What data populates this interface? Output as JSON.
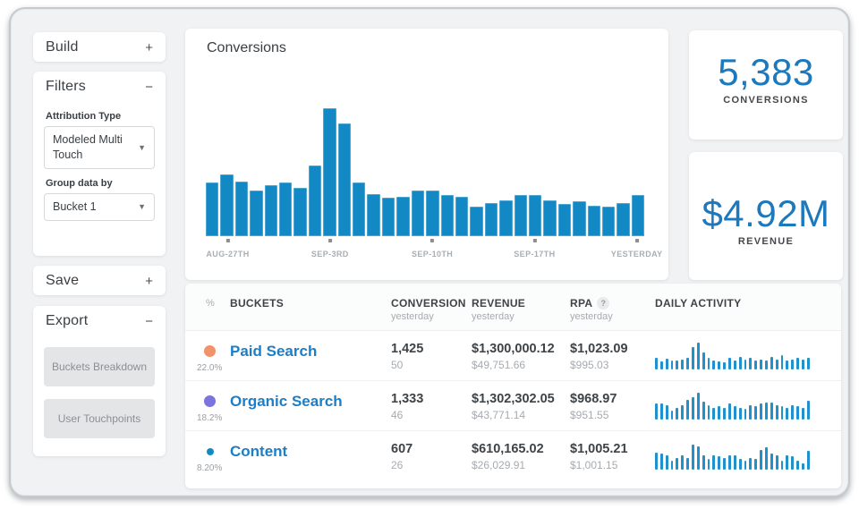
{
  "colors": {
    "accent_blue": "#1289c5",
    "stat_blue": "#1d79bb",
    "link_blue": "#1b7ec6",
    "window_bg": "#f1f2f4"
  },
  "sidebar": {
    "build": {
      "label": "Build",
      "toggle": "+"
    },
    "filters": {
      "label": "Filters",
      "toggle": "−",
      "attribution_label": "Attribution Type",
      "attribution_value": "Modeled Multi Touch",
      "group_label": "Group data by",
      "group_value": "Bucket 1"
    },
    "save": {
      "label": "Save",
      "toggle": "+"
    },
    "export": {
      "label": "Export",
      "toggle": "−",
      "buttons": [
        {
          "label": "Buckets Breakdown"
        },
        {
          "label": "User Touchpoints"
        }
      ]
    }
  },
  "chart": {
    "title": "Conversions",
    "x_labels": [
      "AUG-27TH",
      "SEP-3RD",
      "SEP-10TH",
      "SEP-17TH",
      "YESTERDAY"
    ],
    "values_relative_pct": [
      42,
      48,
      43,
      36,
      40,
      42,
      38,
      55,
      100,
      88,
      42,
      33,
      30,
      31,
      36,
      36,
      32,
      31,
      23,
      26,
      28,
      32,
      32,
      28,
      25,
      27,
      24,
      23,
      26,
      32
    ]
  },
  "chart_data": {
    "type": "bar",
    "title": "Conversions",
    "categories_note": "30 daily bars; ticks mark AUG-27TH, SEP-3RD, SEP-10TH, SEP-17TH, YESTERDAY at bars 2, 9, 16, 23, 30",
    "x_tick_labels": [
      "AUG-27TH",
      "SEP-3RD",
      "SEP-10TH",
      "SEP-17TH",
      "YESTERDAY"
    ],
    "values": [
      42,
      48,
      43,
      36,
      40,
      42,
      38,
      55,
      100,
      88,
      42,
      33,
      30,
      31,
      36,
      36,
      32,
      31,
      23,
      26,
      28,
      32,
      32,
      28,
      25,
      27,
      24,
      23,
      26,
      32
    ],
    "ylabel": "",
    "xlabel": "",
    "value_units": "relative bar height, % of tallest bar (no y-axis shown)",
    "grid": false,
    "legend": false
  },
  "stats": {
    "conversions": {
      "value": "5,383",
      "label": "CONVERSIONS"
    },
    "revenue": {
      "value": "$4.92M",
      "label": "REVENUE"
    }
  },
  "table": {
    "headers": {
      "pct": "%",
      "buckets": "BUCKETS",
      "conversion": "CONVERSION",
      "revenue": "REVENUE",
      "rpa": "RPA",
      "rpa_help": "?",
      "daily": "DAILY ACTIVITY",
      "sub": "yesterday"
    },
    "rows": [
      {
        "dot_color": "#f2926a",
        "pct": "22.0%",
        "name": "Paid Search",
        "conversion": "1,425",
        "conversion_sub": "50",
        "revenue": "$1,300,000.12",
        "revenue_sub": "$49,751.66",
        "rpa": "$1,023.09",
        "rpa_sub": "$995.03",
        "daily_activity_relative_pct": [
          45,
          30,
          40,
          32,
          32,
          38,
          42,
          85,
          100,
          65,
          42,
          35,
          30,
          28,
          42,
          32,
          48,
          38,
          42,
          32,
          38,
          32,
          48,
          38,
          52,
          33,
          38,
          42,
          38,
          45
        ]
      },
      {
        "dot_color": "#7c74de",
        "pct": "18.2%",
        "name": "Organic Search",
        "conversion": "1,333",
        "conversion_sub": "46",
        "revenue": "$1,302,302.05",
        "revenue_sub": "$43,771.14",
        "rpa": "$968.97",
        "rpa_sub": "$951.55",
        "daily_activity_relative_pct": [
          60,
          60,
          52,
          35,
          42,
          55,
          75,
          85,
          100,
          68,
          55,
          45,
          50,
          45,
          60,
          50,
          45,
          40,
          55,
          50,
          60,
          65,
          65,
          55,
          50,
          45,
          55,
          50,
          45,
          70
        ]
      },
      {
        "dot_color": "#1289c5",
        "pct": "8.20%",
        "name": "Content",
        "conversion": "607",
        "conversion_sub": "26",
        "revenue": "$610,165.02",
        "revenue_sub": "$26,029.91",
        "rpa": "$1,005.21",
        "rpa_sub": "$1,001.15",
        "daily_activity_relative_pct": [
          65,
          60,
          52,
          32,
          45,
          55,
          45,
          95,
          88,
          55,
          40,
          55,
          50,
          45,
          55,
          55,
          40,
          35,
          45,
          40,
          75,
          85,
          60,
          55,
          35,
          55,
          50,
          35,
          25,
          70
        ]
      }
    ]
  }
}
